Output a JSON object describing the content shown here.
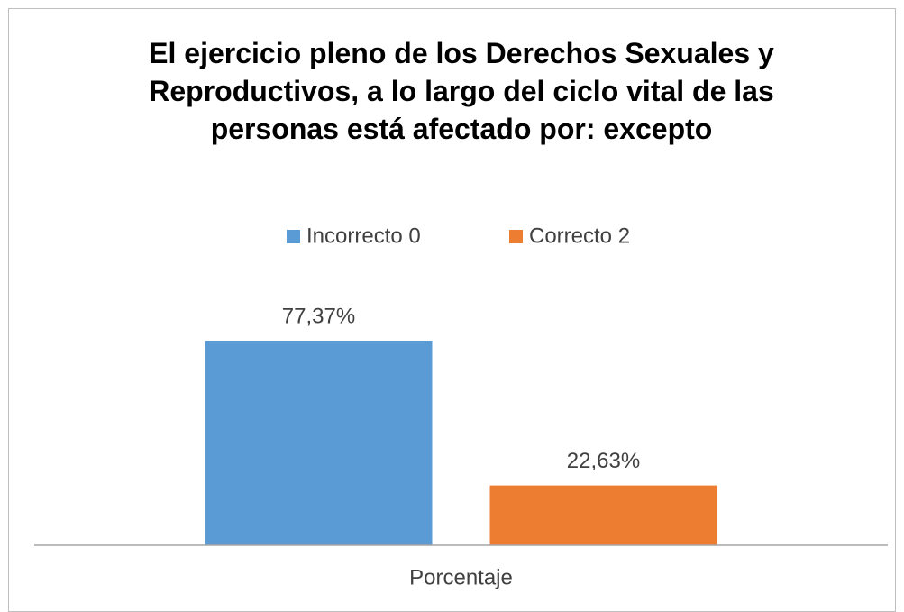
{
  "chart_data": {
    "type": "bar",
    "title": "El ejercicio pleno de los Derechos Sexuales y Reproductivos, a lo largo del ciclo vital de las personas está afectado por: excepto",
    "categories": [
      "Porcentaje"
    ],
    "series": [
      {
        "name": "Incorrecto 0",
        "color": "#5b9bd5",
        "values": [
          77.37
        ],
        "value_labels": [
          "77,37%"
        ]
      },
      {
        "name": "Correcto 2",
        "color": "#ed7d31",
        "values": [
          22.63
        ],
        "value_labels": [
          "22,63%"
        ]
      }
    ],
    "legend": "top"
  }
}
